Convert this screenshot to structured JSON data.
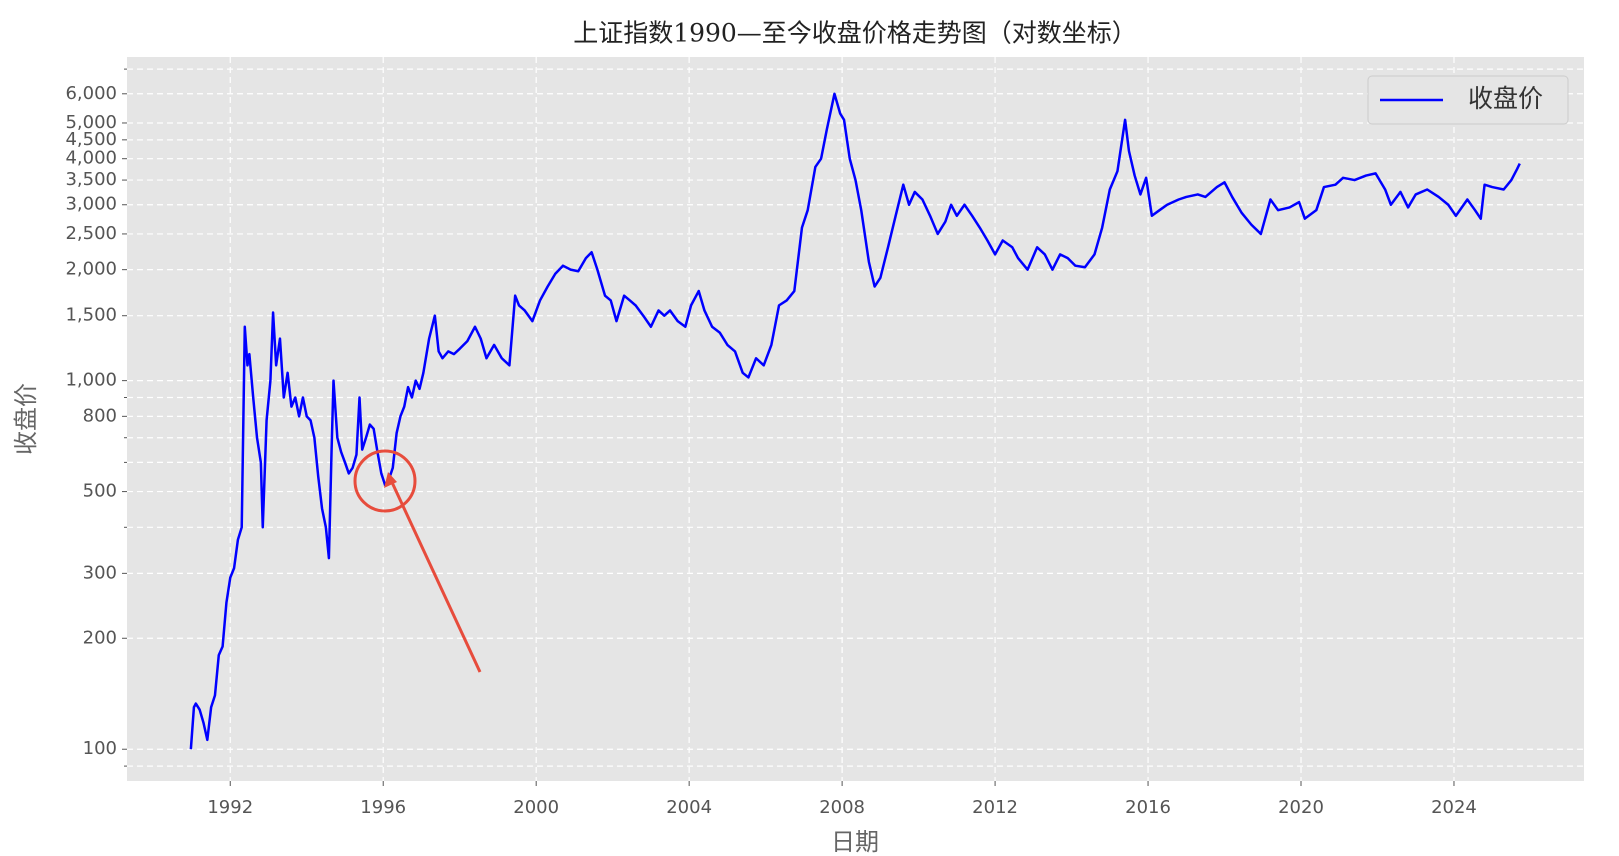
{
  "chart_data": {
    "type": "line",
    "title": "上证指数1990—至今收盘价格走势图（对数坐标）",
    "xlabel": "日期",
    "ylabel": "收盘价",
    "log_y": true,
    "grid": true,
    "legend": "upper right",
    "xlim": [
      1989.3,
      2027.4
    ],
    "xticks": [
      1992,
      1996,
      2000,
      2004,
      2008,
      2012,
      2016,
      2020,
      2024
    ],
    "ylim": [
      82,
      7550
    ],
    "yticks": [
      100,
      200,
      300,
      500,
      800,
      {
        "value": 1000,
        "label": "1,000"
      },
      {
        "value": 1500,
        "label": "1,500"
      },
      {
        "value": 2000,
        "label": "2,000"
      },
      {
        "value": 2500,
        "label": "2,500"
      },
      {
        "value": 3000,
        "label": "3,000"
      },
      {
        "value": 3500,
        "label": "3,500"
      },
      {
        "value": 4000,
        "label": "4,000"
      },
      {
        "value": 4500,
        "label": "4,500"
      },
      {
        "value": 5000,
        "label": "5,000"
      },
      {
        "value": 6000,
        "label": "6,000"
      }
    ],
    "yminor_ticks": [
      90,
      400,
      600,
      700,
      900,
      7000
    ],
    "x": [
      1990.97,
      1991.05,
      1991.1,
      1991.2,
      1991.3,
      1991.4,
      1991.5,
      1991.6,
      1991.7,
      1991.8,
      1991.9,
      1992.0,
      1992.1,
      1992.2,
      1992.3,
      1992.38,
      1992.45,
      1992.5,
      1992.6,
      1992.7,
      1992.8,
      1992.85,
      1992.95,
      1993.05,
      1993.12,
      1993.2,
      1993.3,
      1993.4,
      1993.5,
      1993.6,
      1993.7,
      1993.8,
      1993.9,
      1994.0,
      1994.1,
      1994.2,
      1994.3,
      1994.4,
      1994.5,
      1994.58,
      1994.65,
      1994.7,
      1994.8,
      1994.9,
      1995.0,
      1995.1,
      1995.2,
      1995.3,
      1995.38,
      1995.45,
      1995.55,
      1995.65,
      1995.75,
      1995.85,
      1995.95,
      1996.05,
      1996.15,
      1996.25,
      1996.35,
      1996.45,
      1996.55,
      1996.65,
      1996.75,
      1996.85,
      1996.95,
      1997.05,
      1997.2,
      1997.35,
      1997.45,
      1997.55,
      1997.7,
      1997.85,
      1998.0,
      1998.2,
      1998.4,
      1998.55,
      1998.7,
      1998.9,
      1999.1,
      1999.3,
      1999.45,
      1999.55,
      1999.7,
      1999.9,
      2000.1,
      2000.3,
      2000.5,
      2000.7,
      2000.9,
      2001.1,
      2001.3,
      2001.45,
      2001.6,
      2001.8,
      2001.95,
      2002.1,
      2002.3,
      2002.45,
      2002.6,
      2002.8,
      2003.0,
      2003.2,
      2003.35,
      2003.5,
      2003.7,
      2003.9,
      2004.05,
      2004.25,
      2004.4,
      2004.6,
      2004.8,
      2005.0,
      2005.2,
      2005.4,
      2005.55,
      2005.75,
      2005.95,
      2006.15,
      2006.35,
      2006.55,
      2006.75,
      2006.95,
      2007.1,
      2007.3,
      2007.45,
      2007.6,
      2007.8,
      2007.95,
      2008.05,
      2008.2,
      2008.35,
      2008.5,
      2008.7,
      2008.85,
      2009.0,
      2009.2,
      2009.4,
      2009.6,
      2009.75,
      2009.9,
      2010.1,
      2010.3,
      2010.5,
      2010.7,
      2010.85,
      2011.0,
      2011.2,
      2011.4,
      2011.6,
      2011.8,
      2012.0,
      2012.2,
      2012.45,
      2012.6,
      2012.85,
      2013.1,
      2013.3,
      2013.5,
      2013.7,
      2013.9,
      2014.1,
      2014.35,
      2014.6,
      2014.8,
      2015.0,
      2015.2,
      2015.4,
      2015.5,
      2015.65,
      2015.8,
      2015.95,
      2016.1,
      2016.3,
      2016.5,
      2016.8,
      2017.0,
      2017.3,
      2017.5,
      2017.8,
      2018.0,
      2018.2,
      2018.45,
      2018.7,
      2018.95,
      2019.2,
      2019.4,
      2019.7,
      2019.95,
      2020.1,
      2020.4,
      2020.6,
      2020.9,
      2021.1,
      2021.4,
      2021.7,
      2021.95,
      2022.2,
      2022.35,
      2022.6,
      2022.8,
      2023.0,
      2023.3,
      2023.6,
      2023.85,
      2024.05,
      2024.35,
      2024.55,
      2024.7,
      2024.8,
      2025.0,
      2025.3,
      2025.5,
      2025.65,
      2025.72
    ],
    "series": [
      {
        "name": "收盘价",
        "color": "#0000ff",
        "values": [
          100,
          130,
          133,
          128,
          118,
          106,
          130,
          140,
          180,
          190,
          250,
          292,
          310,
          370,
          400,
          1400,
          1100,
          1180,
          900,
          700,
          600,
          400,
          780,
          1000,
          1530,
          1100,
          1300,
          900,
          1050,
          850,
          900,
          800,
          900,
          800,
          780,
          700,
          550,
          450,
          400,
          330,
          650,
          1000,
          700,
          640,
          600,
          560,
          580,
          630,
          900,
          650,
          700,
          760,
          740,
          640,
          560,
          520,
          540,
          580,
          720,
          800,
          850,
          960,
          900,
          1000,
          950,
          1050,
          1300,
          1500,
          1200,
          1150,
          1200,
          1180,
          1220,
          1280,
          1400,
          1300,
          1150,
          1250,
          1150,
          1100,
          1700,
          1600,
          1550,
          1450,
          1650,
          1800,
          1950,
          2050,
          2000,
          1980,
          2150,
          2230,
          2000,
          1700,
          1650,
          1450,
          1700,
          1650,
          1600,
          1500,
          1400,
          1550,
          1500,
          1550,
          1450,
          1400,
          1600,
          1750,
          1550,
          1400,
          1350,
          1250,
          1200,
          1050,
          1020,
          1150,
          1100,
          1250,
          1600,
          1650,
          1750,
          2600,
          2900,
          3800,
          4000,
          4800,
          6000,
          5300,
          5100,
          4000,
          3500,
          2900,
          2100,
          1800,
          1900,
          2300,
          2800,
          3400,
          3000,
          3250,
          3100,
          2800,
          2500,
          2700,
          3000,
          2800,
          3000,
          2800,
          2600,
          2400,
          2200,
          2400,
          2300,
          2150,
          2000,
          2300,
          2200,
          2000,
          2200,
          2150,
          2050,
          2030,
          2200,
          2600,
          3300,
          3700,
          5100,
          4200,
          3600,
          3200,
          3550,
          2800,
          2900,
          3000,
          3100,
          3150,
          3200,
          3150,
          3350,
          3450,
          3150,
          2850,
          2650,
          2500,
          3100,
          2900,
          2950,
          3050,
          2750,
          2900,
          3350,
          3400,
          3550,
          3500,
          3600,
          3650,
          3300,
          3000,
          3250,
          2950,
          3200,
          3300,
          3150,
          3000,
          2800,
          3100,
          2900,
          2750,
          3400,
          3350,
          3300,
          3500,
          3750,
          3880
        ]
      }
    ]
  }
}
